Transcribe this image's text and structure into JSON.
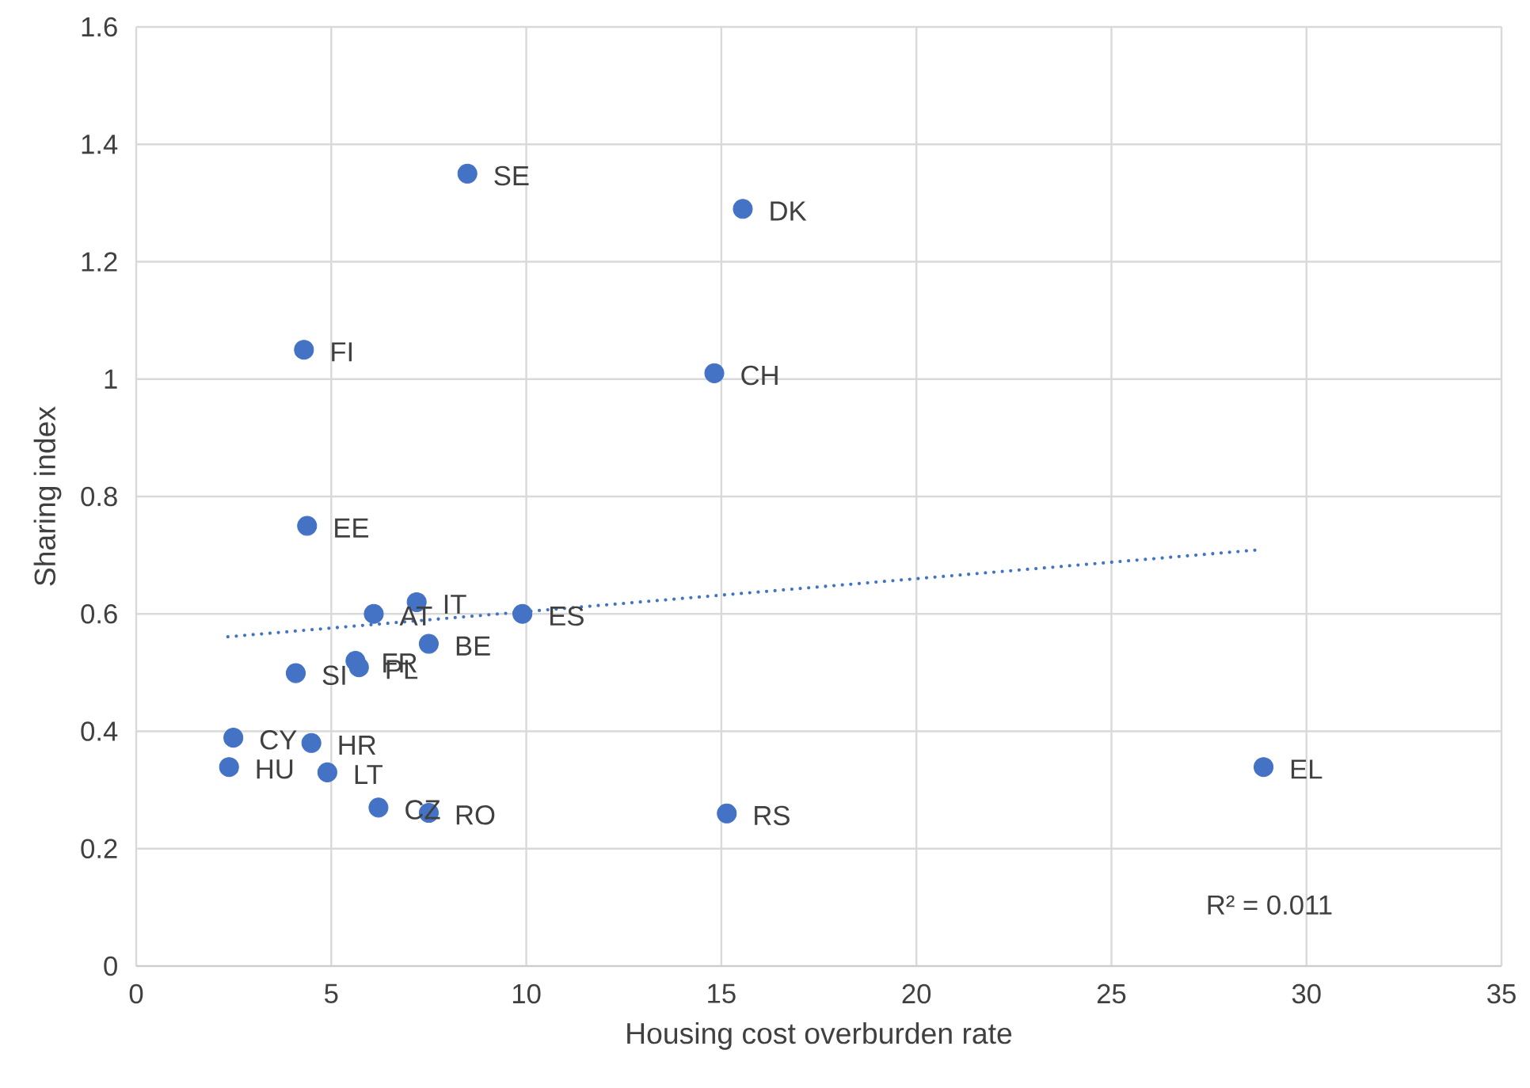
{
  "chart_data": {
    "type": "scatter",
    "xlabel": "Housing cost overburden rate",
    "ylabel": "Sharing index",
    "xlim": [
      0,
      35
    ],
    "ylim": [
      0,
      1.6
    ],
    "xticks": [
      0,
      5,
      10,
      15,
      20,
      25,
      30,
      35
    ],
    "yticks": [
      0,
      0.2,
      0.4,
      0.6,
      0.8,
      1,
      1.2,
      1.4,
      1.6
    ],
    "grid": true,
    "series": [
      {
        "color": "#4472c4",
        "marker": "circle",
        "x": [
          8.49,
          15.55,
          4.3,
          14.82,
          4.38,
          7.19,
          6.09,
          9.9,
          7.5,
          5.62,
          5.71,
          4.09,
          2.49,
          4.49,
          2.38,
          4.9,
          6.21,
          7.5,
          15.14,
          28.9
        ],
        "values": [
          1.35,
          1.29,
          1.05,
          1.01,
          0.75,
          0.62,
          0.6,
          0.6,
          0.549,
          0.52,
          0.509,
          0.499,
          0.389,
          0.38,
          0.339,
          0.33,
          0.27,
          0.261,
          0.26,
          0.339
        ]
      },
      {
        "type": "line",
        "color": "#4472c4",
        "marker": "none",
        "line_style": "dotted",
        "x": [
          2.35,
          28.75
        ],
        "values": [
          0.561,
          0.709
        ]
      }
    ],
    "annotations": [
      {
        "text": "SE",
        "x": 8.49,
        "y": 1.35
      },
      {
        "text": "DK",
        "x": 15.55,
        "y": 1.29
      },
      {
        "text": "FI",
        "x": 4.3,
        "y": 1.05
      },
      {
        "text": "CH",
        "x": 14.82,
        "y": 1.01
      },
      {
        "text": "EE",
        "x": 4.38,
        "y": 0.75
      },
      {
        "text": "IT",
        "x": 7.19,
        "y": 0.62
      },
      {
        "text": "AT",
        "x": 6.09,
        "y": 0.6
      },
      {
        "text": "ES",
        "x": 9.9,
        "y": 0.6
      },
      {
        "text": "BE",
        "x": 7.5,
        "y": 0.549
      },
      {
        "text": "FR",
        "x": 5.62,
        "y": 0.52
      },
      {
        "text": "PL",
        "x": 5.71,
        "y": 0.509
      },
      {
        "text": "SI",
        "x": 4.09,
        "y": 0.499
      },
      {
        "text": "CY",
        "x": 2.49,
        "y": 0.389
      },
      {
        "text": "HR",
        "x": 4.49,
        "y": 0.38
      },
      {
        "text": "HU",
        "x": 2.38,
        "y": 0.339
      },
      {
        "text": "LT",
        "x": 4.9,
        "y": 0.33
      },
      {
        "text": "CZ",
        "x": 6.21,
        "y": 0.27
      },
      {
        "text": "RO",
        "x": 7.5,
        "y": 0.261
      },
      {
        "text": "RS",
        "x": 15.14,
        "y": 0.26
      },
      {
        "text": "EL",
        "x": 28.9,
        "y": 0.339
      },
      "R² = 0.011"
    ]
  }
}
